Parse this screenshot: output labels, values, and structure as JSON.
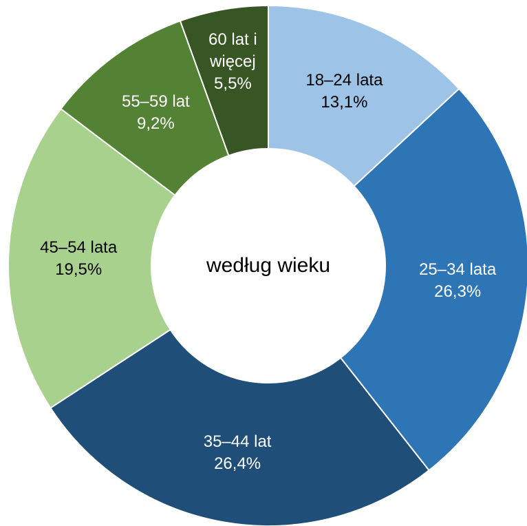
{
  "chart_data": {
    "type": "donut",
    "center_label": "według wieku",
    "categories": [
      "18–24 lata",
      "25–34 lata",
      "35–44 lat",
      "45–54 lata",
      "55–59 lat",
      "60 lat i więcej"
    ],
    "values": [
      13.1,
      26.3,
      26.4,
      19.5,
      9.2,
      5.5
    ],
    "value_labels": [
      "13,1%",
      "26,3%",
      "26,4%",
      "19,5%",
      "9,2%",
      "5,5%"
    ],
    "colors": [
      "#9dc3e6",
      "#2e75b6",
      "#1f4e79",
      "#a9d18e",
      "#548235",
      "#375623"
    ],
    "label_colors": [
      "#000000",
      "#ffffff",
      "#ffffff",
      "#000000",
      "#ffffff",
      "#ffffff"
    ]
  }
}
